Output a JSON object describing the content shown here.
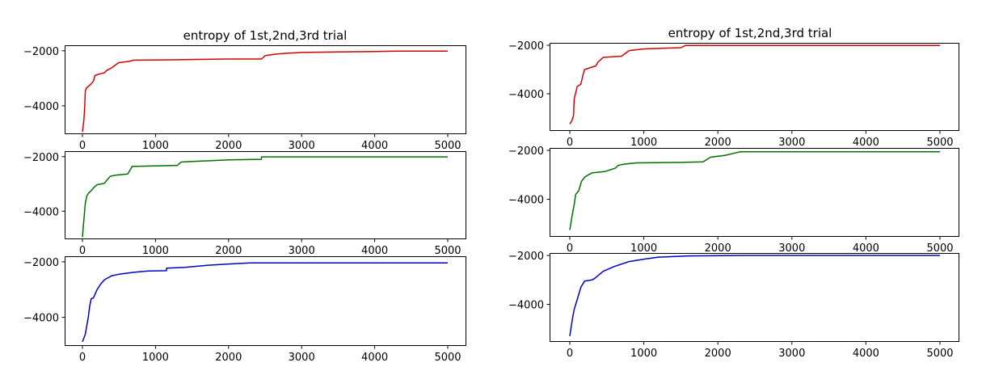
{
  "chart_data": [
    {
      "type": "line",
      "title": "entropy of 1st,2nd,3rd trial",
      "xlim": [
        0,
        5000
      ],
      "ylim": [
        -5000,
        -1800
      ],
      "x_ticks": [
        0,
        1000,
        2000,
        3000,
        4000,
        5000
      ],
      "x_tick_labels": [
        "0",
        "1000",
        "2000",
        "3000",
        "4000",
        "5000"
      ],
      "y_ticks": [
        -2000,
        -4000
      ],
      "y_tick_labels": [
        "−2000",
        "−4000"
      ],
      "grid": false,
      "series": [
        {
          "color": "#d40000",
          "points": [
            [
              0,
              -4950
            ],
            [
              20,
              -4500
            ],
            [
              30,
              -4100
            ],
            [
              40,
              -3450
            ],
            [
              60,
              -3330
            ],
            [
              80,
              -3300
            ],
            [
              120,
              -3200
            ],
            [
              150,
              -3100
            ],
            [
              170,
              -2900
            ],
            [
              220,
              -2850
            ],
            [
              300,
              -2800
            ],
            [
              330,
              -2720
            ],
            [
              400,
              -2620
            ],
            [
              450,
              -2520
            ],
            [
              500,
              -2430
            ],
            [
              650,
              -2380
            ],
            [
              700,
              -2340
            ],
            [
              1100,
              -2330
            ],
            [
              2000,
              -2300
            ],
            [
              2450,
              -2300
            ],
            [
              2500,
              -2180
            ],
            [
              2650,
              -2120
            ],
            [
              2800,
              -2090
            ],
            [
              3000,
              -2060
            ],
            [
              3500,
              -2040
            ],
            [
              4000,
              -2030
            ],
            [
              4300,
              -2010
            ],
            [
              5000,
              -2010
            ]
          ]
        },
        {
          "color": "#007000",
          "points": [
            [
              0,
              -4950
            ],
            [
              20,
              -4300
            ],
            [
              40,
              -3700
            ],
            [
              60,
              -3450
            ],
            [
              80,
              -3350
            ],
            [
              120,
              -3250
            ],
            [
              160,
              -3120
            ],
            [
              200,
              -3030
            ],
            [
              300,
              -2980
            ],
            [
              330,
              -2880
            ],
            [
              380,
              -2720
            ],
            [
              450,
              -2680
            ],
            [
              620,
              -2640
            ],
            [
              650,
              -2500
            ],
            [
              680,
              -2360
            ],
            [
              1300,
              -2320
            ],
            [
              1350,
              -2200
            ],
            [
              1500,
              -2180
            ],
            [
              2000,
              -2120
            ],
            [
              2450,
              -2100
            ],
            [
              2450,
              -2010
            ],
            [
              5000,
              -2010
            ]
          ]
        },
        {
          "color": "#0000c8",
          "points": [
            [
              0,
              -4880
            ],
            [
              40,
              -4600
            ],
            [
              80,
              -4000
            ],
            [
              100,
              -3600
            ],
            [
              120,
              -3330
            ],
            [
              150,
              -3300
            ],
            [
              200,
              -3000
            ],
            [
              250,
              -2800
            ],
            [
              300,
              -2650
            ],
            [
              400,
              -2500
            ],
            [
              500,
              -2450
            ],
            [
              700,
              -2380
            ],
            [
              900,
              -2330
            ],
            [
              1150,
              -2320
            ],
            [
              1150,
              -2230
            ],
            [
              1400,
              -2200
            ],
            [
              1700,
              -2130
            ],
            [
              2000,
              -2080
            ],
            [
              2300,
              -2040
            ],
            [
              5000,
              -2040
            ]
          ]
        }
      ]
    },
    {
      "type": "line",
      "title": "entropy of 1st,2nd,3rd trial",
      "xlim": [
        0,
        5000
      ],
      "ylim": [
        -5500,
        -1900
      ],
      "x_ticks": [
        0,
        1000,
        2000,
        3000,
        4000,
        5000
      ],
      "x_tick_labels": [
        "0",
        "1000",
        "2000",
        "3000",
        "4000",
        "5000"
      ],
      "y_ticks": [
        -2000,
        -4000
      ],
      "y_tick_labels": [
        "−2000",
        "−4000"
      ],
      "grid": false,
      "series": [
        {
          "color": "#d40000",
          "points": [
            [
              0,
              -5250
            ],
            [
              30,
              -5100
            ],
            [
              50,
              -4900
            ],
            [
              60,
              -4200
            ],
            [
              100,
              -3700
            ],
            [
              130,
              -3640
            ],
            [
              150,
              -3600
            ],
            [
              180,
              -3200
            ],
            [
              200,
              -3000
            ],
            [
              350,
              -2850
            ],
            [
              380,
              -2700
            ],
            [
              450,
              -2500
            ],
            [
              700,
              -2450
            ],
            [
              800,
              -2220
            ],
            [
              1000,
              -2150
            ],
            [
              1500,
              -2100
            ],
            [
              1560,
              -2010
            ],
            [
              5000,
              -2010
            ]
          ]
        },
        {
          "color": "#007000",
          "points": [
            [
              0,
              -5250
            ],
            [
              30,
              -4700
            ],
            [
              60,
              -4200
            ],
            [
              80,
              -3800
            ],
            [
              120,
              -3650
            ],
            [
              160,
              -3250
            ],
            [
              200,
              -3100
            ],
            [
              250,
              -3000
            ],
            [
              300,
              -2920
            ],
            [
              480,
              -2860
            ],
            [
              620,
              -2720
            ],
            [
              650,
              -2620
            ],
            [
              700,
              -2580
            ],
            [
              800,
              -2540
            ],
            [
              900,
              -2510
            ],
            [
              1500,
              -2490
            ],
            [
              1800,
              -2470
            ],
            [
              1900,
              -2280
            ],
            [
              2100,
              -2200
            ],
            [
              2300,
              -2060
            ],
            [
              5000,
              -2060
            ]
          ]
        },
        {
          "color": "#0000c8",
          "points": [
            [
              0,
              -5300
            ],
            [
              20,
              -4900
            ],
            [
              40,
              -4500
            ],
            [
              60,
              -4200
            ],
            [
              100,
              -3800
            ],
            [
              150,
              -3300
            ],
            [
              200,
              -3050
            ],
            [
              300,
              -3000
            ],
            [
              340,
              -2930
            ],
            [
              450,
              -2650
            ],
            [
              600,
              -2450
            ],
            [
              800,
              -2250
            ],
            [
              1000,
              -2150
            ],
            [
              1200,
              -2070
            ],
            [
              1600,
              -2020
            ],
            [
              2300,
              -2000
            ],
            [
              5000,
              -2000
            ]
          ]
        }
      ]
    }
  ]
}
